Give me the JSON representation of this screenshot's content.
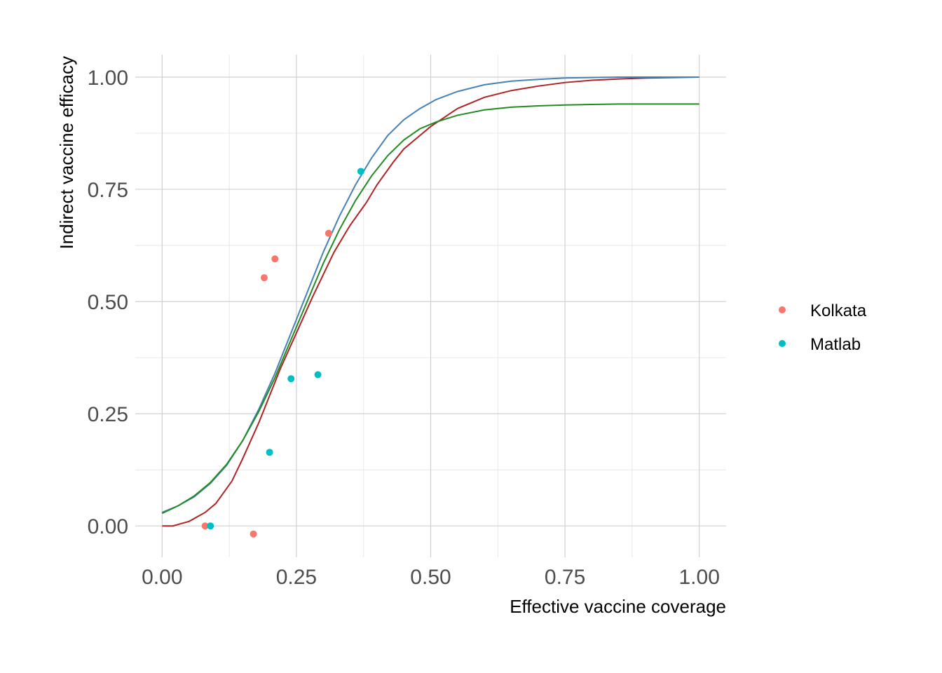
{
  "chart_data": {
    "type": "scatter",
    "xlabel": "Effective vaccine coverage",
    "ylabel": "Indirect vaccine efficacy",
    "xlim": [
      -0.05,
      1.05
    ],
    "ylim": [
      -0.07,
      1.05
    ],
    "x_ticks": [
      0.0,
      0.25,
      0.5,
      0.75,
      1.0
    ],
    "x_tick_labels": [
      "0.00",
      "0.25",
      "0.50",
      "0.75",
      "1.00"
    ],
    "y_ticks": [
      0.0,
      0.25,
      0.5,
      0.75,
      1.0
    ],
    "y_tick_labels": [
      "0.00",
      "0.25",
      "0.50",
      "0.75",
      "1.00"
    ],
    "grid": true,
    "legend_position": "right",
    "series": [
      {
        "name": "Kolkata",
        "type": "points",
        "color": "#F8766D",
        "points": [
          [
            0.08,
            0.0
          ],
          [
            0.17,
            -0.018
          ],
          [
            0.19,
            0.553
          ],
          [
            0.21,
            0.595
          ],
          [
            0.31,
            0.652
          ]
        ]
      },
      {
        "name": "Matlab",
        "type": "points",
        "color": "#00BFC4",
        "points": [
          [
            0.09,
            0.0
          ],
          [
            0.2,
            0.164
          ],
          [
            0.24,
            0.328
          ],
          [
            0.29,
            0.337
          ],
          [
            0.37,
            0.79
          ]
        ]
      }
    ],
    "fitted_curves": [
      {
        "color": "#B22222",
        "x": [
          0.0,
          0.02,
          0.05,
          0.08,
          0.1,
          0.13,
          0.15,
          0.18,
          0.2,
          0.22,
          0.25,
          0.28,
          0.3,
          0.32,
          0.35,
          0.38,
          0.4,
          0.43,
          0.45,
          0.48,
          0.5,
          0.55,
          0.6,
          0.65,
          0.7,
          0.75,
          0.8,
          0.85,
          0.9,
          0.95,
          1.0
        ],
        "y": [
          0.0,
          0.0,
          0.01,
          0.03,
          0.05,
          0.1,
          0.15,
          0.23,
          0.29,
          0.35,
          0.43,
          0.51,
          0.56,
          0.61,
          0.67,
          0.72,
          0.76,
          0.81,
          0.84,
          0.87,
          0.89,
          0.93,
          0.955,
          0.97,
          0.98,
          0.988,
          0.993,
          0.996,
          0.998,
          0.999,
          1.0
        ]
      },
      {
        "color": "#4682B4",
        "x": [
          0.0,
          0.03,
          0.06,
          0.09,
          0.12,
          0.15,
          0.18,
          0.21,
          0.24,
          0.27,
          0.3,
          0.33,
          0.36,
          0.39,
          0.42,
          0.45,
          0.48,
          0.51,
          0.55,
          0.6,
          0.65,
          0.7,
          0.75,
          0.8,
          0.85,
          0.9,
          0.95,
          1.0
        ],
        "y": [
          0.03,
          0.045,
          0.065,
          0.095,
          0.135,
          0.19,
          0.26,
          0.34,
          0.43,
          0.52,
          0.61,
          0.69,
          0.76,
          0.82,
          0.87,
          0.905,
          0.93,
          0.95,
          0.968,
          0.983,
          0.991,
          0.995,
          0.998,
          0.999,
          1.0,
          1.0,
          1.0,
          1.0
        ]
      },
      {
        "color": "#228B22",
        "x": [
          0.0,
          0.03,
          0.06,
          0.09,
          0.12,
          0.15,
          0.18,
          0.21,
          0.24,
          0.27,
          0.3,
          0.33,
          0.36,
          0.39,
          0.42,
          0.45,
          0.48,
          0.51,
          0.55,
          0.6,
          0.65,
          0.7,
          0.75,
          0.8,
          0.85,
          0.9,
          0.95,
          1.0
        ],
        "y": [
          0.028,
          0.045,
          0.067,
          0.097,
          0.137,
          0.19,
          0.255,
          0.33,
          0.415,
          0.5,
          0.585,
          0.66,
          0.725,
          0.78,
          0.825,
          0.86,
          0.885,
          0.9,
          0.915,
          0.927,
          0.933,
          0.936,
          0.938,
          0.939,
          0.94,
          0.94,
          0.94,
          0.94
        ]
      }
    ]
  }
}
